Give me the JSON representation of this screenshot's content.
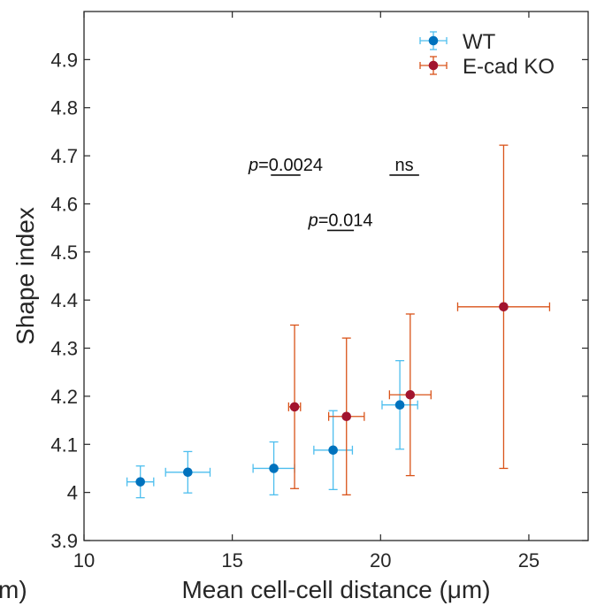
{
  "chart_data": {
    "type": "scatter",
    "xlabel": "Mean cell-cell distance (μm)",
    "ylabel": "Shape index",
    "left_cut_label": "m)",
    "xlim": [
      10,
      27
    ],
    "ylim": [
      3.9,
      5.0
    ],
    "xticks": [
      10,
      15,
      20,
      25
    ],
    "yticks": [
      3.9,
      4,
      4.1,
      4.2,
      4.3,
      4.4,
      4.5,
      4.6,
      4.7,
      4.8,
      4.9
    ],
    "xtick_labels": [
      "10",
      "15",
      "20",
      "25"
    ],
    "ytick_labels": [
      "3.9",
      "4",
      "4.1",
      "4.2",
      "4.3",
      "4.4",
      "4.5",
      "4.6",
      "4.7",
      "4.8",
      "4.9"
    ],
    "legend": {
      "position": "top-right",
      "entries": [
        {
          "label": "WT",
          "marker_color": "#0072BD",
          "bar_color": "#4DBEEE"
        },
        {
          "label": "E-cad KO",
          "marker_color": "#A2142F",
          "bar_color": "#D95319"
        }
      ]
    },
    "series": [
      {
        "name": "WT",
        "marker_color": "#0072BD",
        "bar_color": "#4DBEEE",
        "points": [
          {
            "x": 11.9,
            "y": 4.022,
            "xerr": 0.45,
            "yerr": 0.033
          },
          {
            "x": 13.5,
            "y": 4.042,
            "xerr": 0.75,
            "yerr": 0.043
          },
          {
            "x": 16.4,
            "y": 4.05,
            "xerr": 0.7,
            "yerr": 0.055
          },
          {
            "x": 18.4,
            "y": 4.088,
            "xerr": 0.65,
            "yerr": 0.082
          },
          {
            "x": 20.65,
            "y": 4.182,
            "xerr": 0.6,
            "yerr": 0.092
          }
        ]
      },
      {
        "name": "E-cad KO",
        "marker_color": "#A2142F",
        "bar_color": "#D95319",
        "points": [
          {
            "x": 17.1,
            "y": 4.178,
            "xerr": 0.2,
            "yerr": 0.17
          },
          {
            "x": 18.85,
            "y": 4.158,
            "xerr": 0.6,
            "yerr": 0.163
          },
          {
            "x": 21.0,
            "y": 4.203,
            "xerr": 0.7,
            "yerr": 0.168
          },
          {
            "x": 24.15,
            "y": 4.386,
            "xerr": 1.55,
            "yerr": 0.336
          }
        ]
      }
    ],
    "annotations": [
      {
        "id": "p1",
        "text": "p=0.0024",
        "x1": 16.3,
        "x2": 17.3,
        "y": 4.68
      },
      {
        "id": "p2",
        "text": "p=0.014",
        "x1": 18.2,
        "x2": 19.1,
        "y": 4.565
      },
      {
        "id": "ns",
        "text": "ns",
        "x1": 20.3,
        "x2": 21.3,
        "y": 4.68
      }
    ]
  }
}
